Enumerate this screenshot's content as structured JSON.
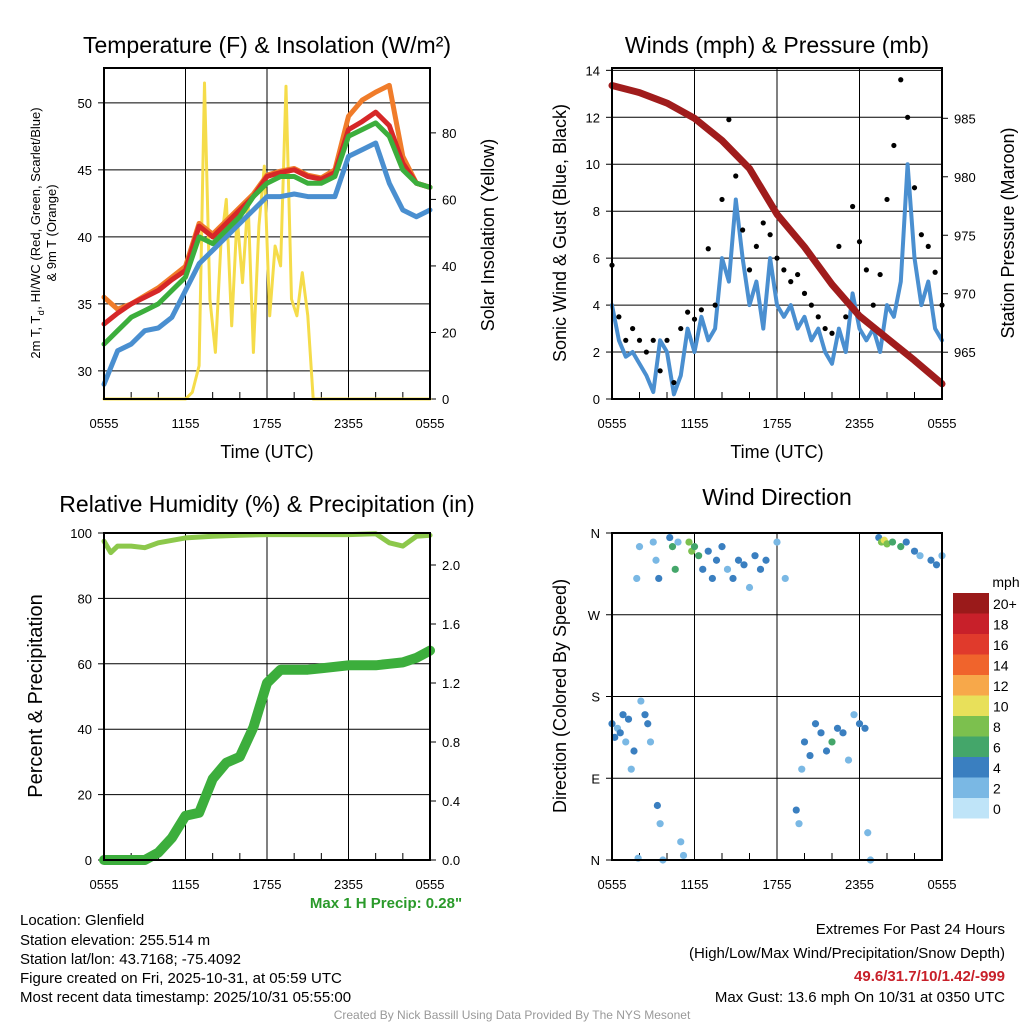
{
  "chart_data": [
    {
      "type": "line",
      "title": "Temperature (F) & Insolation (W/m²)",
      "xlabel": "Time (UTC)",
      "ylabel": "2m T, Td, HI/WC (Red, Green, Scarlet/Blue) & 9m T (Orange)",
      "ylabel_line1": "2m T, T",
      "ylabel_sub": "d",
      "ylabel_line1b": ", HI/WC (Red, Green, Scarlet/Blue)",
      "ylabel_line2": "& 9m T (Orange)",
      "y2label": "Solar Insolation (Yellow)",
      "xticks": [
        "0555",
        "1155",
        "1755",
        "2355",
        "0555"
      ],
      "yticks": [
        "30",
        "35",
        "40",
        "45",
        "50"
      ],
      "y2ticks": [
        "0",
        "20",
        "40",
        "60",
        "80"
      ],
      "ylim": [
        27.9,
        52.6
      ],
      "y2lim": [
        0,
        99.5
      ],
      "xlim_hours": [
        0,
        24
      ],
      "series": [
        {
          "name": "9m T",
          "color": "#f07c2a",
          "x": [
            0,
            1,
            2,
            3,
            4,
            5,
            6,
            7,
            8,
            9,
            10,
            11,
            12,
            13,
            14,
            15,
            16,
            17,
            18,
            19,
            20,
            21,
            22,
            23,
            24
          ],
          "values": [
            35.5,
            34.6,
            35,
            35.6,
            36.2,
            37,
            37.8,
            41,
            40.2,
            41.2,
            42.2,
            43.2,
            44.6,
            44.9,
            45.1,
            44.6,
            44.4,
            45,
            49,
            50.2,
            50.8,
            51.3,
            46,
            44,
            43.7
          ]
        },
        {
          "name": "2m T",
          "color": "#d62728",
          "x": [
            0,
            1,
            2,
            3,
            4,
            5,
            6,
            7,
            8,
            9,
            10,
            11,
            12,
            13,
            14,
            15,
            16,
            17,
            18,
            19,
            20,
            21,
            22,
            23,
            24
          ],
          "values": [
            33.5,
            34.3,
            35,
            35.5,
            36,
            36.8,
            37.5,
            40.8,
            40,
            41,
            42,
            43,
            44.5,
            44.8,
            45,
            44.5,
            44.3,
            44.8,
            48,
            48.6,
            49.3,
            48.3,
            45.5,
            44,
            43.7
          ]
        },
        {
          "name": "Td",
          "color": "#3cae3c",
          "x": [
            0,
            1,
            2,
            3,
            4,
            5,
            6,
            7,
            8,
            9,
            10,
            11,
            12,
            13,
            14,
            15,
            16,
            17,
            18,
            19,
            20,
            21,
            22,
            23,
            24
          ],
          "values": [
            32,
            33,
            34,
            34.5,
            35,
            36,
            37,
            40,
            39.5,
            40.5,
            41.5,
            43,
            44,
            44.5,
            44.5,
            44,
            44,
            44.5,
            47.5,
            48,
            48.5,
            47.5,
            45,
            44,
            43.7
          ]
        },
        {
          "name": "HI/WC",
          "color": "#4a8fd0",
          "x": [
            0,
            1,
            2,
            3,
            4,
            5,
            6,
            7,
            8,
            9,
            10,
            11,
            12,
            13,
            14,
            15,
            16,
            17,
            18,
            19,
            20,
            21,
            22,
            23,
            24
          ],
          "values": [
            29,
            31.5,
            32,
            33,
            33.2,
            34,
            36,
            38,
            39,
            40,
            41,
            42,
            43,
            43,
            43.2,
            43,
            43,
            43,
            46,
            46.5,
            47,
            44,
            42,
            41.5,
            42
          ]
        },
        {
          "name": "Solar Insolation",
          "axis": "right",
          "color": "#f5dc4a",
          "x": [
            0,
            6,
            6.5,
            7,
            7.4,
            7.8,
            8.2,
            8.6,
            9,
            9.4,
            9.8,
            10.2,
            10.6,
            11,
            11.4,
            11.8,
            12.2,
            12.6,
            13,
            13.4,
            13.8,
            14.2,
            14.6,
            15,
            15.4,
            15.8,
            16.2,
            24
          ],
          "values": [
            0,
            0,
            2,
            10,
            95,
            30,
            14,
            46,
            60,
            22,
            55,
            35,
            60,
            14,
            52,
            70,
            25,
            46,
            40,
            94,
            30,
            25,
            38,
            25,
            0,
            0,
            0,
            0
          ]
        }
      ]
    },
    {
      "type": "line",
      "title": "Winds (mph) & Pressure (mb)",
      "xlabel": "Time (UTC)",
      "ylabel": "Sonic Wind & Gust (Blue, Black)",
      "y2label": "Station Pressure (Maroon)",
      "xticks": [
        "0555",
        "1155",
        "1755",
        "2355",
        "0555"
      ],
      "yticks": [
        "0",
        "2",
        "4",
        "6",
        "8",
        "10",
        "12",
        "14"
      ],
      "y2ticks": [
        "965",
        "970",
        "975",
        "980",
        "985"
      ],
      "ylim": [
        0,
        14.1
      ],
      "y2lim": [
        961,
        989.3
      ],
      "series": [
        {
          "name": "Sonic Wind",
          "color": "#4a8fd0",
          "x_step_hours": 0.5,
          "values": [
            4,
            2.5,
            1.8,
            2,
            1.5,
            1,
            0.3,
            2.5,
            2,
            0.2,
            1,
            3,
            2,
            3.5,
            2.5,
            3,
            6,
            5,
            8.5,
            6,
            4,
            5,
            3,
            6,
            4,
            3.5,
            4,
            3,
            3.5,
            2.5,
            3,
            2,
            1.5,
            3,
            2,
            4.5,
            3,
            2.5,
            3,
            2,
            4,
            3.5,
            5,
            10,
            6,
            4,
            5,
            3,
            2.5
          ]
        },
        {
          "name": "Gust",
          "color": "#000000",
          "marker": "dot",
          "x_step_hours": 0.5,
          "values": [
            5.7,
            3.5,
            2.5,
            3,
            2.5,
            2,
            2.5,
            1.2,
            2.5,
            0.7,
            3,
            3.7,
            3.4,
            3.8,
            6.4,
            4,
            8.5,
            11.9,
            9.5,
            7.2,
            5.5,
            6.5,
            7.5,
            7,
            6,
            5.5,
            5,
            5.3,
            4.5,
            4,
            3.5,
            3,
            2.8,
            6.5,
            3.5,
            8.2,
            6.7,
            5.5,
            4,
            5.3,
            8.5,
            10.8,
            13.6,
            12,
            9,
            7,
            6.5,
            5.4,
            4
          ]
        },
        {
          "name": "Station Pressure",
          "axis": "right",
          "color": "#a01c1c",
          "x": [
            0,
            2,
            4,
            6,
            8,
            10,
            12,
            14,
            16,
            18,
            20,
            22,
            24
          ],
          "values": [
            987.8,
            987.2,
            986.3,
            985,
            983.1,
            980.7,
            976.8,
            974,
            970.8,
            968.1,
            966.2,
            964.3,
            962.3
          ]
        }
      ]
    },
    {
      "type": "line",
      "title": "Relative Humidity (%) & Precipitation (in)",
      "ylabel": "Percent & Precipitation",
      "xticks": [
        "0555",
        "1155",
        "1755",
        "2355",
        "0555"
      ],
      "yticks": [
        "0",
        "20",
        "40",
        "60",
        "80",
        "100"
      ],
      "y2ticks": [
        "0.0",
        "0.4",
        "0.8",
        "1.2",
        "1.6",
        "2.0"
      ],
      "ylim": [
        0,
        100
      ],
      "y2lim": [
        0,
        2.217
      ],
      "annotation": "Max 1 H Precip: 0.28\"",
      "series": [
        {
          "name": "Relative Humidity",
          "color": "#8cc84b",
          "x": [
            0,
            0.5,
            1,
            2,
            3,
            4,
            6,
            8,
            10,
            12,
            14,
            16,
            18,
            20,
            21,
            22,
            23,
            24
          ],
          "values": [
            97.5,
            94,
            96,
            96,
            95.5,
            97,
            98.5,
            99,
            99.3,
            99.5,
            99.5,
            99.5,
            99.5,
            99.8,
            97,
            96,
            99,
            99.3
          ]
        },
        {
          "name": "Precipitation",
          "axis": "right",
          "color": "#3cae3c",
          "x": [
            0,
            3,
            4,
            5,
            6,
            7,
            8,
            9,
            10,
            11,
            12,
            13,
            14,
            15,
            16,
            17,
            18,
            19,
            20,
            21,
            22,
            23,
            24
          ],
          "values": [
            0,
            0,
            0.05,
            0.15,
            0.3,
            0.32,
            0.55,
            0.66,
            0.7,
            0.9,
            1.2,
            1.29,
            1.29,
            1.29,
            1.3,
            1.31,
            1.32,
            1.32,
            1.32,
            1.33,
            1.34,
            1.37,
            1.42
          ]
        }
      ]
    },
    {
      "type": "scatter",
      "title": "Wind Direction",
      "ylabel": "Direction (Colored By Speed)",
      "xticks": [
        "0555",
        "1155",
        "1755",
        "2355",
        "0555"
      ],
      "yticks": [
        "N",
        "E",
        "S",
        "W",
        "N"
      ],
      "ylim_degrees": [
        0,
        360
      ],
      "legend": {
        "title": "mph",
        "placement": "right",
        "labels": [
          "20+",
          "18",
          "16",
          "14",
          "12",
          "10",
          "8",
          "6",
          "4",
          "2",
          "0"
        ],
        "colors": [
          "#9a1a1a",
          "#c8202a",
          "#e03a2c",
          "#f0642c",
          "#f7a84a",
          "#e8e05a",
          "#7cc04e",
          "#44a66a",
          "#3a7fc0",
          "#7ab8e4",
          "#bfe4f8"
        ]
      },
      "points_hours_deg_mph": [
        [
          0,
          150,
          3
        ],
        [
          0.2,
          135,
          4
        ],
        [
          0.4,
          145,
          2
        ],
        [
          0.6,
          140,
          4
        ],
        [
          0.8,
          160,
          3
        ],
        [
          1,
          130,
          2
        ],
        [
          1.2,
          155,
          4
        ],
        [
          1.4,
          100,
          2
        ],
        [
          1.6,
          120,
          3
        ],
        [
          1.8,
          310,
          1
        ],
        [
          2,
          345,
          1
        ],
        [
          1.9,
          2,
          1
        ],
        [
          2.1,
          175,
          2
        ],
        [
          2.4,
          160,
          3
        ],
        [
          2.6,
          150,
          4
        ],
        [
          2.8,
          130,
          1
        ],
        [
          3,
          350,
          1
        ],
        [
          3.2,
          330,
          2
        ],
        [
          3.4,
          310,
          3
        ],
        [
          3.3,
          60,
          3
        ],
        [
          3.5,
          40,
          1
        ],
        [
          3.7,
          0,
          1
        ],
        [
          4.2,
          355,
          4
        ],
        [
          4.4,
          345,
          5
        ],
        [
          4.6,
          320,
          6
        ],
        [
          4.8,
          350,
          1
        ],
        [
          5,
          20,
          1
        ],
        [
          5.2,
          5,
          2
        ],
        [
          5.6,
          350,
          7
        ],
        [
          5.8,
          340,
          7
        ],
        [
          6,
          345,
          6
        ],
        [
          6.3,
          335,
          5
        ],
        [
          6.6,
          320,
          4
        ],
        [
          7,
          340,
          4
        ],
        [
          7.3,
          310,
          3
        ],
        [
          7.6,
          330,
          3
        ],
        [
          8,
          345,
          4
        ],
        [
          8.4,
          320,
          2
        ],
        [
          8.8,
          310,
          3
        ],
        [
          9.2,
          330,
          4
        ],
        [
          9.6,
          325,
          3
        ],
        [
          10,
          300,
          2
        ],
        [
          10.4,
          335,
          3
        ],
        [
          10.8,
          320,
          4
        ],
        [
          11.2,
          330,
          3
        ],
        [
          12,
          350,
          1
        ],
        [
          12.6,
          310,
          1
        ],
        [
          13.4,
          55,
          3
        ],
        [
          13.6,
          40,
          2
        ],
        [
          13.8,
          100,
          2
        ],
        [
          14,
          130,
          3
        ],
        [
          14.4,
          115,
          4
        ],
        [
          14.8,
          150,
          4
        ],
        [
          15.2,
          140,
          3
        ],
        [
          15.6,
          120,
          4
        ],
        [
          16,
          130,
          5
        ],
        [
          16.4,
          145,
          4
        ],
        [
          16.8,
          140,
          3
        ],
        [
          17.2,
          110,
          2
        ],
        [
          17.6,
          160,
          2
        ],
        [
          18,
          150,
          3
        ],
        [
          18.4,
          145,
          4
        ],
        [
          18.6,
          30,
          2
        ],
        [
          18.8,
          0,
          2
        ],
        [
          19.4,
          355,
          4
        ],
        [
          19.6,
          350,
          8
        ],
        [
          19.8,
          352,
          10
        ],
        [
          20,
          348,
          7
        ],
        [
          20.4,
          350,
          5
        ],
        [
          21,
          345,
          6
        ],
        [
          21.4,
          350,
          4
        ],
        [
          22,
          340,
          3
        ],
        [
          22.4,
          335,
          2
        ],
        [
          23.2,
          330,
          3
        ],
        [
          23.6,
          325,
          4
        ],
        [
          24,
          335,
          2
        ]
      ]
    }
  ],
  "info": {
    "location": "Location: Glenfield",
    "elevation": "Station elevation: 255.514 m",
    "latlon": "Station lat/lon: 43.7168; -75.4092",
    "created": "Figure created on Fri, 2025-10-31, at 05:59 UTC",
    "recent": "Most recent data timestamp: 2025/10/31 05:55:00"
  },
  "extremes": {
    "title": "Extremes For Past 24 Hours",
    "subtitle": "(High/Low/Max Wind/Precipitation/Snow Depth)",
    "values": "49.6/31.7/10/1.42/-999",
    "max_gust": "Max Gust: 13.6 mph On 10/31 at 0350 UTC",
    "values_color": "#c8202a"
  },
  "credit": "Created By Nick Bassill Using Data Provided By The NYS Mesonet"
}
